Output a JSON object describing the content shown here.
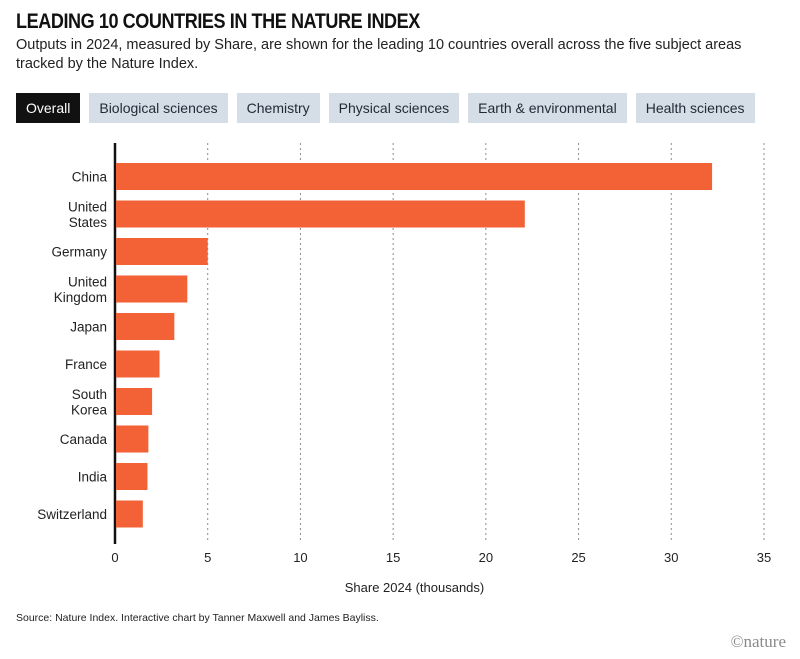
{
  "header": {
    "title": "LEADING 10 COUNTRIES IN THE NATURE INDEX",
    "subtitle": "Outputs in 2024, measured by Share, are shown for the leading 10 countries overall across the five subject areas tracked by the Nature Index."
  },
  "tabs": [
    {
      "label": "Overall",
      "active": true
    },
    {
      "label": "Biological sciences",
      "active": false
    },
    {
      "label": "Chemistry",
      "active": false
    },
    {
      "label": "Physical sciences",
      "active": false
    },
    {
      "label": "Earth & environmental",
      "active": false
    },
    {
      "label": "Health sciences",
      "active": false
    }
  ],
  "chart_data": {
    "type": "bar",
    "orientation": "horizontal",
    "categories": [
      [
        "China"
      ],
      [
        "United",
        "States"
      ],
      [
        "Germany"
      ],
      [
        "United",
        "Kingdom"
      ],
      [
        "Japan"
      ],
      [
        "France"
      ],
      [
        "South",
        "Korea"
      ],
      [
        "Canada"
      ],
      [
        "India"
      ],
      [
        "Switzerland"
      ]
    ],
    "values": [
      32.2,
      22.1,
      5.0,
      3.9,
      3.2,
      2.4,
      2.0,
      1.8,
      1.75,
      1.5
    ],
    "xlabel": "Share 2024 (thousands)",
    "xlim": [
      0,
      35
    ],
    "xticks": [
      "0",
      "5",
      "10",
      "15",
      "20",
      "25",
      "30",
      "35"
    ],
    "grid": "vertical dotted",
    "bar_color": "#f26236"
  },
  "footer": {
    "source": "Source: Nature Index. Interactive chart by Tanner Maxwell and James Bayliss.",
    "brand": "©nature"
  }
}
